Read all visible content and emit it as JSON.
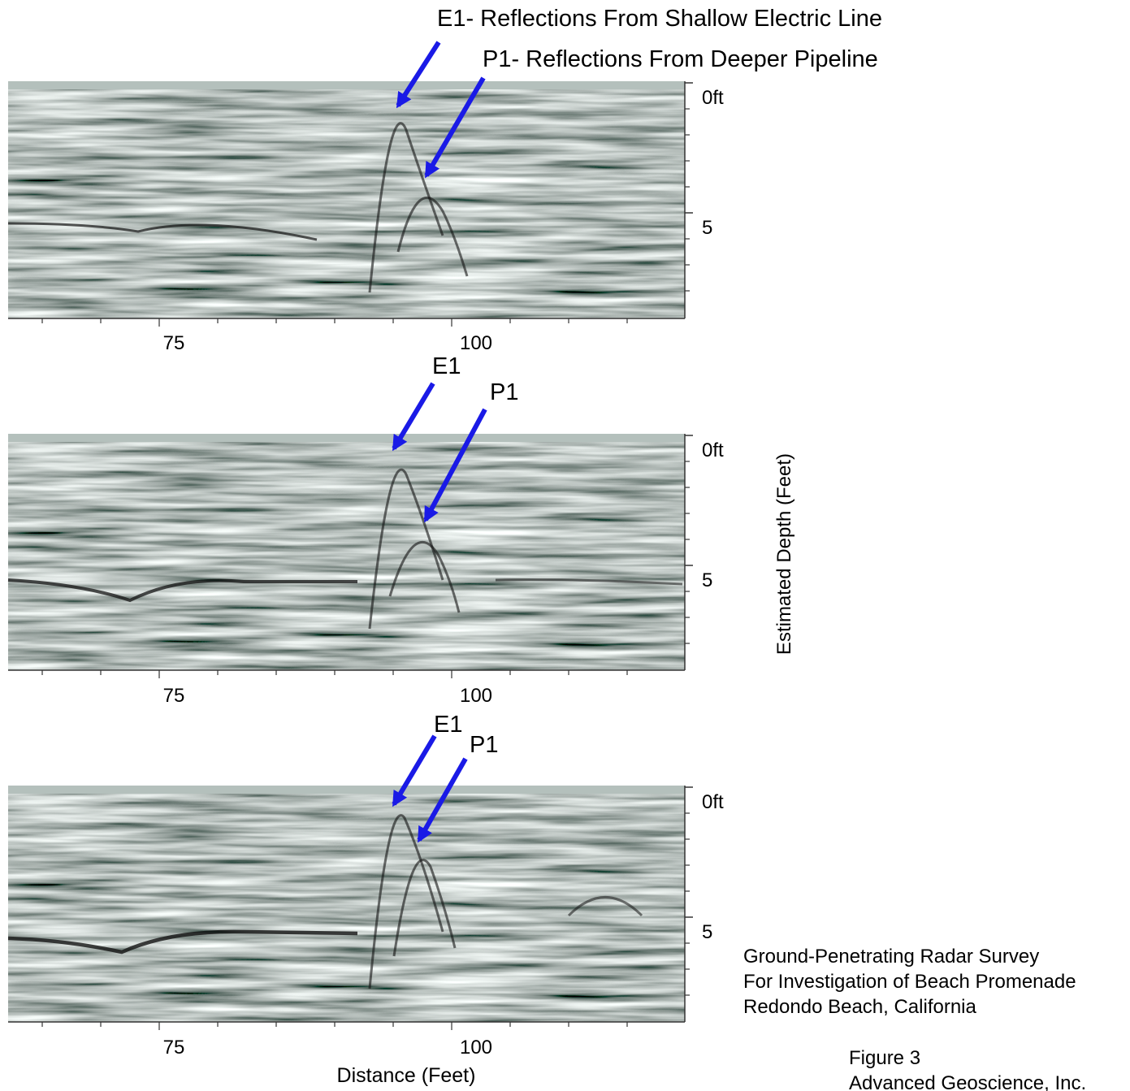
{
  "annotations": {
    "e1_full": "E1- Reflections From Shallow Electric Line",
    "p1_full": "P1- Reflections From Deeper Pipeline",
    "e1": "E1",
    "p1": "P1"
  },
  "panels": [
    {
      "depth_ticks": [
        "0ft",
        "5"
      ],
      "distance_ticks": [
        "75",
        "100"
      ]
    },
    {
      "depth_ticks": [
        "0ft",
        "5"
      ],
      "distance_ticks": [
        "75",
        "100"
      ]
    },
    {
      "depth_ticks": [
        "0ft",
        "5"
      ],
      "distance_ticks": [
        "75",
        "100"
      ]
    }
  ],
  "axes": {
    "depth_label": "Estimated Depth (Feet)",
    "distance_label": "Distance (Feet)"
  },
  "caption": {
    "line1": "Ground-Penetrating Radar Survey",
    "line2": "For Investigation of Beach Promenade",
    "line3": "Redondo Beach, California",
    "figure": "Figure 3",
    "company": "Advanced Geoscience, Inc."
  },
  "colors": {
    "arrow": "#1a1ae6",
    "background_gray": "#b4c0bc"
  }
}
